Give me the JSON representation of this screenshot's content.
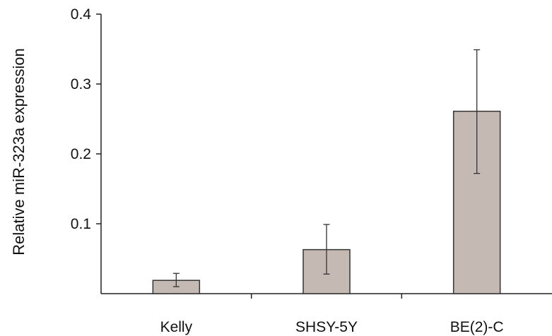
{
  "chart_data": {
    "type": "bar",
    "ylabel": "Relative miR-323a expression",
    "categories": [
      "Kelly",
      "SHSY-5Y",
      "BE(2)-C"
    ],
    "values": [
      0.019,
      0.063,
      0.261
    ],
    "error_low": [
      0.01,
      0.028,
      0.172
    ],
    "error_high": [
      0.029,
      0.099,
      0.349
    ],
    "ylim": [
      0,
      0.4
    ],
    "yticks": [
      0.1,
      0.2,
      0.3,
      0.4
    ],
    "ytick_labels": [
      "0.1",
      "0.2",
      "0.3",
      "0.4"
    ],
    "bar_color": "#c4b9b3",
    "grid": false
  }
}
